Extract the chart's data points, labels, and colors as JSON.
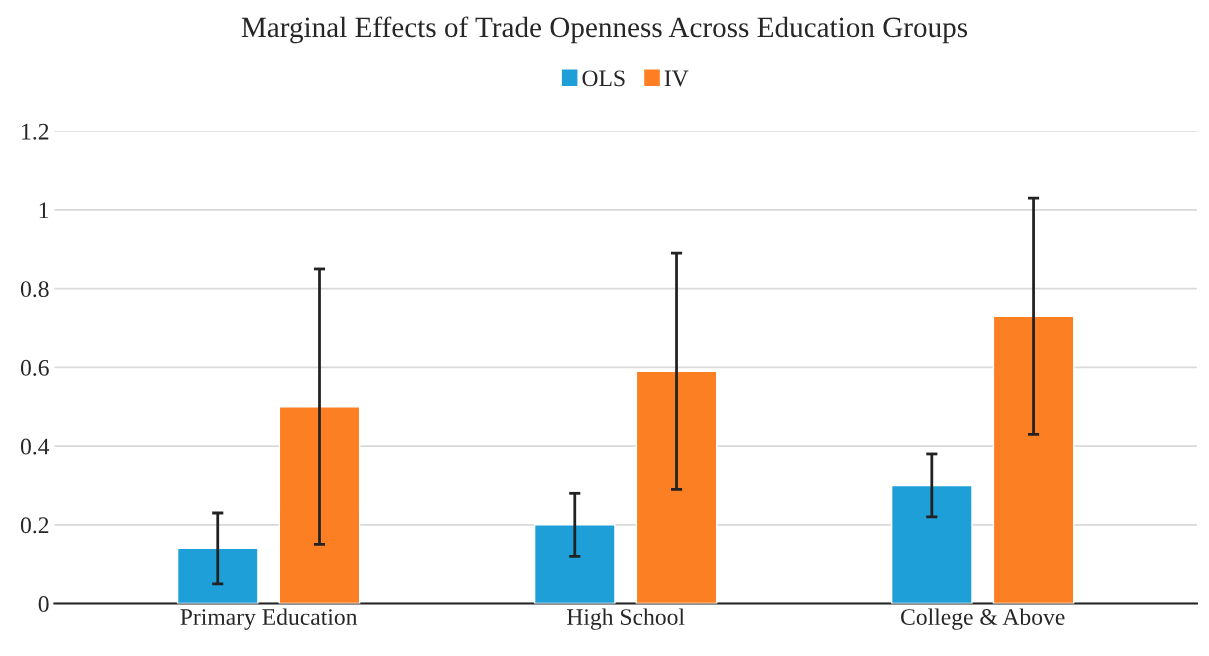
{
  "chart_data": {
    "type": "bar",
    "title": "Marginal Effects of Trade Openness Across Education Groups",
    "categories": [
      "Primary Education",
      "High School",
      "College & Above"
    ],
    "series": [
      {
        "name": "OLS",
        "color": "#1f9fd8",
        "values": [
          0.14,
          0.2,
          0.3
        ],
        "errors": [
          0.09,
          0.08,
          0.08
        ]
      },
      {
        "name": "IV",
        "color": "#fd7f23",
        "values": [
          0.5,
          0.59,
          0.73
        ],
        "errors": [
          0.35,
          0.3,
          0.3
        ]
      }
    ],
    "ylim": [
      0,
      1.2
    ],
    "yticks": [
      0,
      0.2,
      0.4,
      0.6,
      0.8,
      1,
      1.2
    ],
    "grid": "y",
    "legend": "top"
  }
}
